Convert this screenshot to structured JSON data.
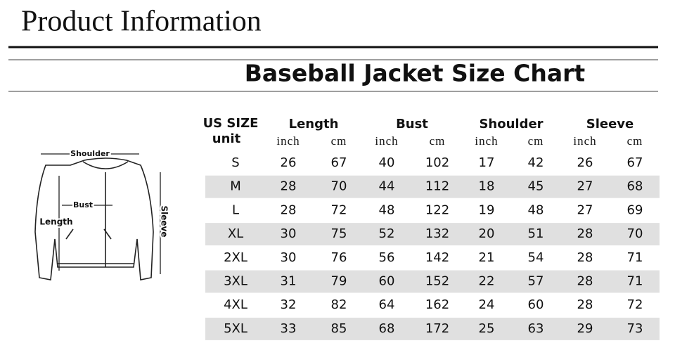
{
  "header": {
    "title": "Product Information"
  },
  "chart_title": "Baseball Jacket Size Chart",
  "diagram": {
    "labels": [
      "Shoulder",
      "Bust",
      "Length",
      "Sleeve"
    ]
  },
  "table": {
    "size_header": "US SIZE",
    "unit_header": "unit",
    "groups": [
      "Length",
      "Bust",
      "Shoulder",
      "Sleeve"
    ],
    "units": [
      "inch",
      "cm",
      "inch",
      "cm",
      "inch",
      "cm",
      "inch",
      "cm"
    ],
    "rows": [
      [
        "S",
        26,
        67,
        40,
        102,
        17,
        42,
        26,
        67
      ],
      [
        "M",
        28,
        70,
        44,
        112,
        18,
        45,
        27,
        68
      ],
      [
        "L",
        28,
        72,
        48,
        122,
        19,
        48,
        27,
        69
      ],
      [
        "XL",
        30,
        75,
        52,
        132,
        20,
        51,
        28,
        70
      ],
      [
        "2XL",
        30,
        76,
        56,
        142,
        21,
        54,
        28,
        71
      ],
      [
        "3XL",
        31,
        79,
        60,
        152,
        22,
        57,
        28,
        71
      ],
      [
        "4XL",
        32,
        82,
        64,
        162,
        24,
        60,
        28,
        72
      ],
      [
        "5XL",
        33,
        85,
        68,
        172,
        25,
        63,
        29,
        73
      ]
    ]
  }
}
